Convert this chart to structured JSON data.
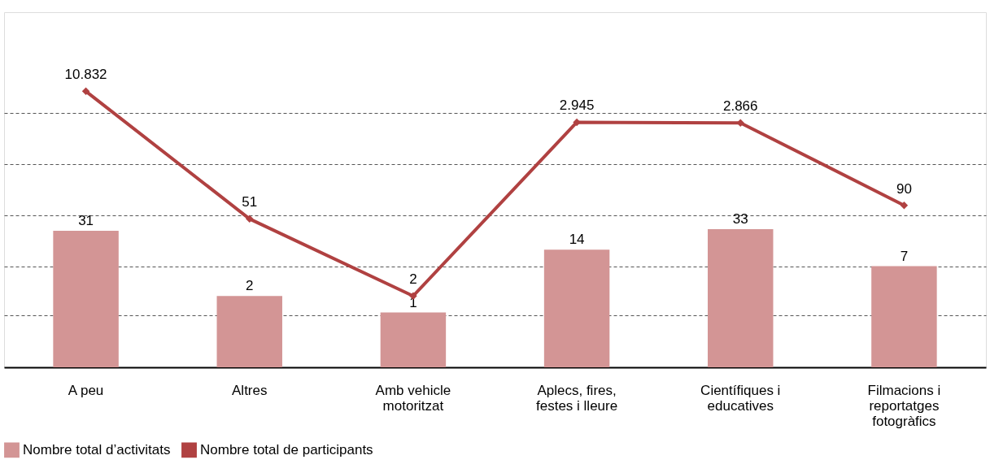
{
  "chart_data": {
    "type": "bar",
    "categories": [
      "A peu",
      "Altres",
      "Amb vehicle motoritzat",
      "Aplecs, fires, festes i lleure",
      "Científiques i educatives",
      "Filmacions i reportatges fotogràfics"
    ],
    "series": [
      {
        "name": "Nombre total d’activitats",
        "color": "#d39595",
        "values": [
          31,
          2,
          1,
          14,
          33,
          7
        ],
        "value_labels": [
          "31",
          "2",
          "1",
          "14",
          "33",
          "7"
        ]
      },
      {
        "name": "Nombre total de participants",
        "type": "line",
        "color": "#b04141",
        "values": [
          10832,
          51,
          2,
          2945,
          2866,
          90
        ],
        "value_labels": [
          "10.832",
          "51",
          "2",
          "2.945",
          "2.866",
          "90"
        ]
      }
    ],
    "log": true,
    "ylim": [
      0.1,
      300000
    ],
    "yticks": [
      {
        "value": 0.9,
        "label": null
      },
      {
        "value": 7,
        "label": null
      },
      {
        "value": 60,
        "label": null
      },
      {
        "value": 500,
        "label": null
      },
      {
        "value": 4300,
        "label": null
      }
    ],
    "tick_labels": "x",
    "grid": "y",
    "legend": "bottom",
    "marker": "diamond",
    "line_style": "solid"
  }
}
